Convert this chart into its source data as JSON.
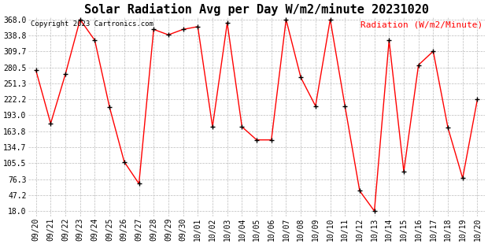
{
  "title": "Solar Radiation Avg per Day W/m2/minute 20231020",
  "copyright_text": "Copyright 2023 Cartronics.com",
  "legend_text": "Radiation (W/m2/Minute)",
  "labels": [
    "09/20",
    "09/21",
    "09/22",
    "09/23",
    "09/24",
    "09/25",
    "09/26",
    "09/27",
    "09/28",
    "09/29",
    "09/30",
    "10/01",
    "10/02",
    "10/03",
    "10/04",
    "10/05",
    "10/06",
    "10/07",
    "10/08",
    "10/09",
    "10/10",
    "10/11",
    "10/12",
    "10/13",
    "10/14",
    "10/15",
    "10/16",
    "10/17",
    "10/18",
    "10/19",
    "10/20"
  ],
  "values": [
    275.0,
    178.0,
    268.0,
    368.0,
    330.0,
    208.0,
    108.0,
    68.0,
    350.0,
    340.0,
    350.0,
    355.0,
    172.0,
    362.0,
    172.0,
    148.0,
    148.0,
    368.0,
    262.0,
    210.0,
    368.0,
    210.0,
    55.0,
    18.0,
    330.0,
    90.0,
    285.0,
    310.0,
    170.0,
    78.0,
    222.0
  ],
  "yticks": [
    18.0,
    47.2,
    76.3,
    105.5,
    134.7,
    163.8,
    193.0,
    222.2,
    251.3,
    280.5,
    309.7,
    338.8,
    368.0
  ],
  "line_color": "red",
  "marker_color": "black",
  "bg_color": "#ffffff",
  "grid_color": "#bbbbbb",
  "title_fontsize": 11,
  "tick_fontsize": 7,
  "legend_fontsize": 8,
  "copyright_fontsize": 6.5,
  "ylabel_color": "red",
  "copyright_color": "black",
  "ylim_min": 18.0,
  "ylim_max": 368.0
}
